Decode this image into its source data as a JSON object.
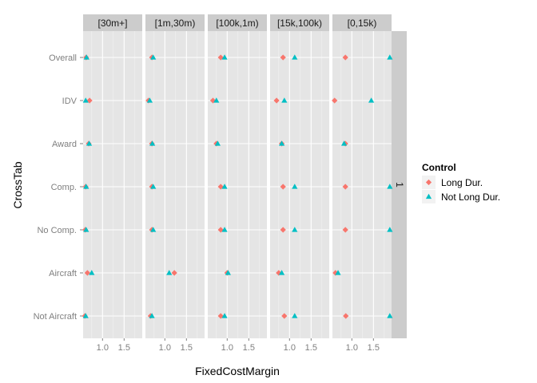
{
  "chart_data": {
    "type": "scatter",
    "facet_labels": [
      "[30m+]",
      "[1m,30m)",
      "[100k,1m)",
      "[15k,100k)",
      "[0,15k)"
    ],
    "row_strip_label": "1",
    "categories": [
      "Overall",
      "IDV",
      "Award",
      "Comp.",
      "No Comp.",
      "Aircraft",
      "Not Aircraft"
    ],
    "xlabel": "FixedCostMargin",
    "ylabel": "CrossTab",
    "x_ticks": [
      {
        "value": 1.0,
        "label": "1.0"
      },
      {
        "value": 1.5,
        "label": "1.5"
      }
    ],
    "xlim": [
      0.55,
      1.92
    ],
    "grid": true,
    "legend": {
      "title": "Control",
      "position": "right",
      "entries": [
        {
          "name": "Long Dur.",
          "color": "#F8766D",
          "shape": "diamond"
        },
        {
          "name": "Not Long Dur.",
          "color": "#00BFC4",
          "shape": "triangle"
        }
      ]
    },
    "facets": [
      {
        "label": "[30m+]",
        "series": [
          {
            "name": "Long Dur.",
            "values": [
              0.62,
              0.7,
              0.68,
              0.61,
              0.6,
              0.65,
              0.59
            ]
          },
          {
            "name": "Not Long Dur.",
            "values": [
              0.63,
              0.61,
              0.69,
              0.62,
              0.62,
              0.75,
              0.61
            ]
          }
        ]
      },
      {
        "label": "[1m,30m)",
        "series": [
          {
            "name": "Long Dur.",
            "values": [
              0.7,
              0.62,
              0.7,
              0.7,
              0.7,
              1.22,
              0.67
            ]
          },
          {
            "name": "Not Long Dur.",
            "values": [
              0.73,
              0.65,
              0.71,
              0.73,
              0.73,
              1.1,
              0.7
            ]
          }
        ]
      },
      {
        "label": "[100k,1m)",
        "series": [
          {
            "name": "Long Dur.",
            "values": [
              0.85,
              0.67,
              0.75,
              0.85,
              0.85,
              1.0,
              0.85
            ]
          },
          {
            "name": "Not Long Dur.",
            "values": [
              0.94,
              0.75,
              0.78,
              0.94,
              0.94,
              1.02,
              0.94
            ]
          }
        ]
      },
      {
        "label": "[15k,100k)",
        "series": [
          {
            "name": "Long Dur.",
            "values": [
              0.85,
              0.7,
              0.82,
              0.85,
              0.85,
              0.75,
              0.88
            ]
          },
          {
            "name": "Not Long Dur.",
            "values": [
              1.12,
              0.88,
              0.82,
              1.12,
              1.12,
              0.82,
              1.12
            ]
          }
        ]
      },
      {
        "label": "[0,15k)",
        "series": [
          {
            "name": "Long Dur.",
            "values": [
              0.85,
              0.6,
              0.85,
              0.85,
              0.85,
              0.62,
              0.86
            ]
          },
          {
            "name": "Not Long Dur.",
            "values": [
              1.88,
              1.45,
              0.82,
              1.88,
              1.88,
              0.68,
              1.88
            ]
          }
        ]
      }
    ]
  }
}
